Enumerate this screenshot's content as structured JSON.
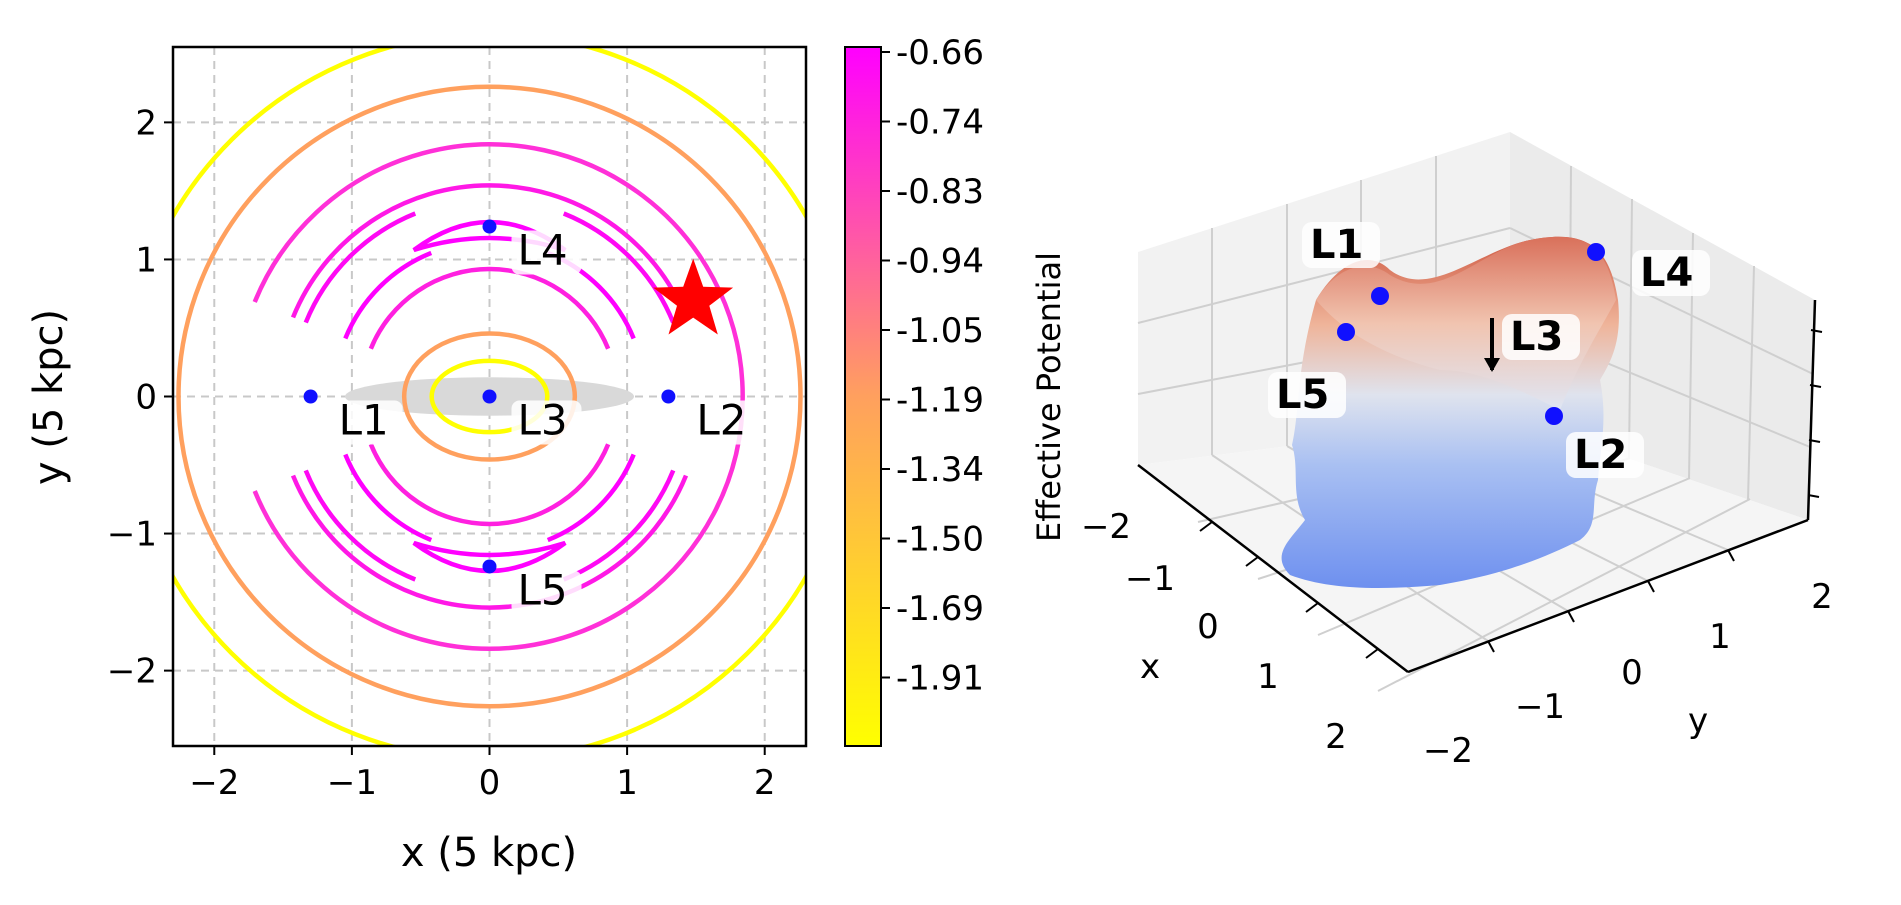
{
  "chart_data": [
    {
      "type": "contour",
      "xlabel": "x (5 kpc)",
      "ylabel": "y (5 kpc)",
      "xlim": [
        -2.3,
        2.3
      ],
      "ylim": [
        -2.55,
        2.55
      ],
      "xticks": [
        -2,
        -1,
        0,
        1,
        2
      ],
      "yticks": [
        -2,
        -1,
        0,
        1,
        2
      ],
      "xtick_labels": [
        "−2",
        "−1",
        "0",
        "1",
        "2"
      ],
      "ytick_labels": [
        "−2",
        "−1",
        "0",
        "1",
        "2"
      ],
      "grid": true,
      "colors": {
        "high": "#ff00ff",
        "mid": "#ff9f5a",
        "low": "#ffff00"
      },
      "contours": [
        {
          "level": -1.91,
          "shape": "circle",
          "radius": 2.65,
          "color": "#ffff00"
        },
        {
          "level": -1.34,
          "shape": "circle",
          "radius": 2.26,
          "color": "#ffa05e"
        },
        {
          "level": -0.94,
          "shape": "circle",
          "radius": 1.84,
          "color": "#ff30d8",
          "gaps": [
            180
          ]
        },
        {
          "level": -0.83,
          "shape": "circle",
          "radius": 1.54,
          "color": "#ff18e6",
          "gaps": [
            0,
            180
          ]
        },
        {
          "level": -0.74,
          "shape": "circle",
          "radius": 1.44,
          "color": "#ff08f4",
          "gaps": [
            0,
            90,
            180,
            270
          ]
        },
        {
          "level": -0.7,
          "shape": "circle",
          "radius": 1.13,
          "color": "#ff00ff",
          "gaps": [
            0,
            90,
            180,
            270
          ]
        },
        {
          "level": -0.88,
          "shape": "circle",
          "radius": 0.93,
          "color": "#ff20e0",
          "gaps": [
            0,
            180
          ]
        },
        {
          "level": -1.34,
          "shape": "ellipse",
          "rx": 0.62,
          "ry": 0.46,
          "color": "#ffa05e"
        },
        {
          "level": -1.91,
          "shape": "ellipse",
          "rx": 0.42,
          "ry": 0.26,
          "color": "#ffff00"
        },
        {
          "level": -0.68,
          "shape": "banana",
          "cy": 1.2,
          "half_width": 0.55,
          "color": "#ff00ff"
        },
        {
          "level": -0.68,
          "shape": "banana",
          "cy": -1.2,
          "half_width": 0.55,
          "color": "#ff00ff"
        }
      ],
      "bar": {
        "rx": 1.05,
        "ry": 0.14,
        "color": "#d9d9d9"
      },
      "lagrange_points": [
        {
          "name": "L1",
          "x": -1.3,
          "y": 0.0
        },
        {
          "name": "L2",
          "x": 1.3,
          "y": 0.0
        },
        {
          "name": "L3",
          "x": 0.0,
          "y": 0.0
        },
        {
          "name": "L4",
          "x": 0.0,
          "y": 1.24
        },
        {
          "name": "L5",
          "x": 0.0,
          "y": -1.24
        }
      ],
      "star": {
        "x": 1.48,
        "y": 0.7,
        "color": "#ff0000"
      }
    },
    {
      "type": "colorbar",
      "label": "Effective Potential",
      "range": [
        -2.04,
        -0.66
      ],
      "ticks": [
        "-0.66",
        "-0.74",
        "-0.83",
        "-0.94",
        "-1.05",
        "-1.19",
        "-1.34",
        "-1.50",
        "-1.69",
        "-1.91"
      ],
      "colors": [
        "#ffff00",
        "#ffa05e",
        "#ff00ff"
      ]
    },
    {
      "type": "surface3d",
      "xlabel": "x",
      "ylabel": "y",
      "x_ticks": [
        "−2",
        "−1",
        "0",
        "1",
        "2"
      ],
      "y_ticks": [
        "−2",
        "−1",
        "0",
        "1",
        "2"
      ],
      "colormap": [
        "#6b8ff0",
        "#c8d6ee",
        "#f0c0a8",
        "#d05a44"
      ],
      "points": [
        {
          "name": "L1"
        },
        {
          "name": "L2"
        },
        {
          "name": "L3",
          "arrow": true
        },
        {
          "name": "L4"
        },
        {
          "name": "L5"
        }
      ]
    }
  ]
}
